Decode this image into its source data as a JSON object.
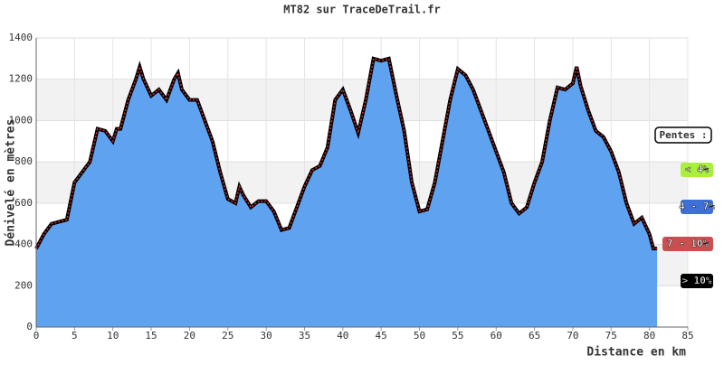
{
  "chart_data": {
    "type": "area",
    "title": "MT82 sur TraceDeTrail.fr",
    "x_label": "Distance en km",
    "y_label": "Dénivelé en mètres",
    "x": [
      0,
      1,
      2,
      3,
      4,
      5,
      6,
      7,
      8,
      9,
      10,
      10.5,
      11,
      12,
      13,
      13.5,
      14,
      15,
      16,
      17,
      18,
      18.5,
      19,
      20,
      21,
      22,
      23,
      24,
      25,
      26,
      26.5,
      27,
      28,
      29,
      30,
      31,
      32,
      33,
      34,
      35,
      36,
      37,
      38,
      39,
      40,
      41,
      42,
      43,
      44,
      45,
      46,
      47,
      48,
      49,
      50,
      51,
      52,
      53,
      54,
      55,
      56,
      57,
      58,
      59,
      60,
      61,
      62,
      63,
      64,
      65,
      66,
      67,
      68,
      69,
      70,
      70.5,
      71,
      72,
      73,
      74,
      75,
      76,
      77,
      78,
      79,
      80,
      80.5,
      81
    ],
    "values": [
      380,
      450,
      500,
      510,
      520,
      700,
      750,
      800,
      960,
      950,
      900,
      960,
      960,
      1100,
      1200,
      1260,
      1200,
      1120,
      1150,
      1100,
      1200,
      1230,
      1150,
      1100,
      1100,
      1000,
      900,
      750,
      620,
      600,
      680,
      640,
      580,
      610,
      610,
      560,
      470,
      480,
      580,
      680,
      760,
      780,
      870,
      1100,
      1150,
      1050,
      940,
      1100,
      1300,
      1290,
      1300,
      1120,
      950,
      700,
      560,
      570,
      700,
      900,
      1100,
      1250,
      1220,
      1150,
      1050,
      950,
      850,
      750,
      600,
      550,
      580,
      700,
      800,
      1000,
      1160,
      1150,
      1180,
      1260,
      1170,
      1050,
      950,
      920,
      850,
      750,
      600,
      500,
      530,
      450,
      380,
      380
    ],
    "color": "#5fa3f0",
    "xlim": [
      0,
      85
    ],
    "xticks": [
      0,
      5,
      10,
      15,
      20,
      25,
      30,
      35,
      40,
      45,
      50,
      55,
      60,
      65,
      70,
      75,
      80,
      85
    ],
    "ylim": [
      0,
      1400
    ],
    "yticks": [
      0,
      200,
      400,
      600,
      800,
      1000,
      1200,
      1400
    ],
    "grid": true,
    "legend_title": "Pentes :",
    "legend": [
      {
        "name": "< 4%",
        "color": "#a8f03a"
      },
      {
        "name": "4 - 7%",
        "color": "#3f6fd8"
      },
      {
        "name": "7 - 10%",
        "color": "#c85050"
      },
      {
        "name": "> 10%",
        "color": "#000000"
      }
    ]
  }
}
